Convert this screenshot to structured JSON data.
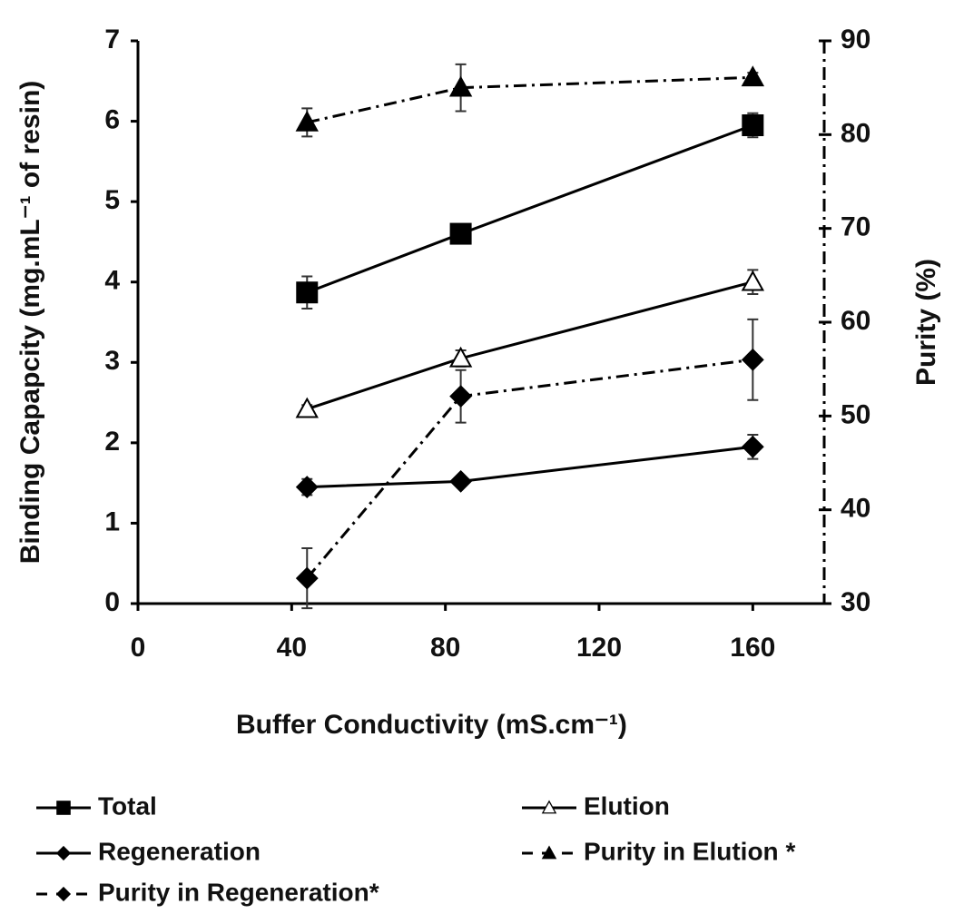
{
  "chart_data": {
    "type": "line",
    "x_label": "Buffer Conductivity (mS.cm⁻¹)",
    "y_label": "Binding Capapcity (mg.mL⁻¹ of resin)",
    "y2_label": "Purity (%)",
    "x": [
      44,
      84,
      160
    ],
    "xlim": [
      0,
      180
    ],
    "xticks": [
      0,
      40,
      80,
      120,
      160
    ],
    "ylim": [
      0,
      7
    ],
    "yticks": [
      0,
      1,
      2,
      3,
      4,
      5,
      6,
      7
    ],
    "y2lim": [
      30,
      90
    ],
    "y2ticks": [
      30,
      40,
      50,
      60,
      70,
      80,
      90
    ],
    "legend": "bottom",
    "series": [
      {
        "name": "Total",
        "color": "#000000",
        "marker": "square",
        "linestyle": "solid",
        "axis": "y",
        "values": [
          3.87,
          4.6,
          5.95
        ],
        "errors": [
          0.2,
          0.05,
          0.15
        ]
      },
      {
        "name": "Elution",
        "color": "#000000",
        "marker": "triangle-open",
        "linestyle": "solid",
        "axis": "y",
        "values": [
          2.42,
          3.05,
          4.0
        ],
        "errors": [
          0.05,
          0.1,
          0.15
        ]
      },
      {
        "name": "Regeneration",
        "color": "#000000",
        "marker": "diamond",
        "linestyle": "solid",
        "axis": "y",
        "values": [
          1.45,
          1.52,
          1.95
        ],
        "errors": [
          0.1,
          0.05,
          0.15
        ]
      },
      {
        "name": "Purity in Elution *",
        "color": "#000000",
        "marker": "triangle",
        "linestyle": "dashdot",
        "axis": "y2",
        "values": [
          81.3,
          85.0,
          86.1
        ],
        "errors": [
          1.5,
          2.5,
          0.5
        ]
      },
      {
        "name": "Purity in Regeneration*",
        "color": "#000000",
        "marker": "diamond",
        "linestyle": "dashdot",
        "axis": "y2",
        "values": [
          32.7,
          52.1,
          56.0
        ],
        "errors": [
          3.2,
          2.8,
          4.3
        ]
      }
    ]
  }
}
